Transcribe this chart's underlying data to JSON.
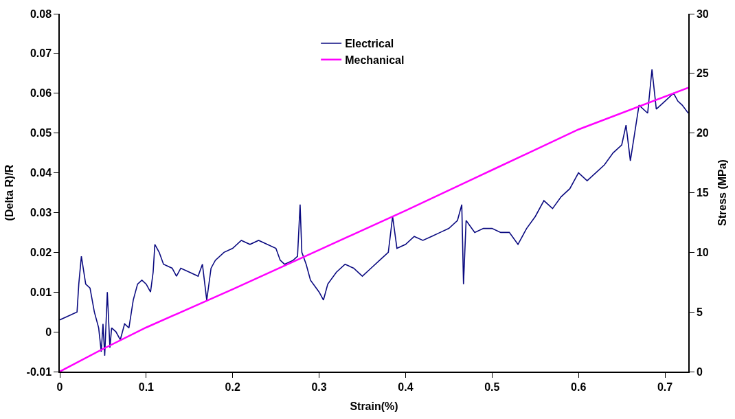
{
  "chart_data": {
    "type": "line",
    "xlabel": "Strain(%)",
    "ylabel": "(Delta R)/R",
    "y2label": "Stress (MPa)",
    "xlim": [
      0,
      0.727
    ],
    "xticks": [
      0,
      0.1,
      0.2,
      0.3,
      0.4,
      0.5,
      0.6,
      0.7
    ],
    "ylim": [
      -0.01,
      0.08
    ],
    "yticks": [
      -0.01,
      0,
      0.01,
      0.02,
      0.03,
      0.04,
      0.05,
      0.06,
      0.07,
      0.08
    ],
    "y2lim": [
      0,
      30
    ],
    "y2ticks": [
      0,
      5,
      10,
      15,
      20,
      25,
      30
    ],
    "legend": "top",
    "marker": "none",
    "line_style": "solid",
    "series": [
      {
        "name": "Electrical",
        "color": "#0a0a80",
        "x": [
          0,
          0.01,
          0.02,
          0.022,
          0.025,
          0.03,
          0.035,
          0.04,
          0.045,
          0.048,
          0.05,
          0.052,
          0.055,
          0.058,
          0.06,
          0.065,
          0.07,
          0.075,
          0.08,
          0.085,
          0.09,
          0.095,
          0.1,
          0.105,
          0.108,
          0.11,
          0.115,
          0.12,
          0.13,
          0.135,
          0.14,
          0.15,
          0.16,
          0.165,
          0.17,
          0.175,
          0.18,
          0.19,
          0.2,
          0.21,
          0.22,
          0.23,
          0.24,
          0.25,
          0.255,
          0.26,
          0.27,
          0.275,
          0.278,
          0.28,
          0.285,
          0.29,
          0.3,
          0.305,
          0.31,
          0.32,
          0.33,
          0.34,
          0.35,
          0.36,
          0.37,
          0.38,
          0.385,
          0.39,
          0.4,
          0.41,
          0.42,
          0.43,
          0.44,
          0.45,
          0.46,
          0.465,
          0.467,
          0.47,
          0.48,
          0.49,
          0.5,
          0.51,
          0.52,
          0.53,
          0.54,
          0.55,
          0.56,
          0.57,
          0.58,
          0.59,
          0.6,
          0.61,
          0.62,
          0.63,
          0.64,
          0.65,
          0.655,
          0.66,
          0.665,
          0.67,
          0.68,
          0.685,
          0.69,
          0.7,
          0.71,
          0.715,
          0.72,
          0.727
        ],
        "values": [
          0.003,
          0.004,
          0.005,
          0.012,
          0.019,
          0.012,
          0.011,
          0.005,
          0.001,
          -0.005,
          0.002,
          -0.006,
          0.01,
          -0.004,
          0.001,
          0.0,
          -0.002,
          0.002,
          0.001,
          0.008,
          0.012,
          0.013,
          0.012,
          0.01,
          0.015,
          0.022,
          0.02,
          0.017,
          0.016,
          0.014,
          0.016,
          0.015,
          0.014,
          0.017,
          0.008,
          0.016,
          0.018,
          0.02,
          0.021,
          0.023,
          0.022,
          0.023,
          0.022,
          0.021,
          0.018,
          0.017,
          0.018,
          0.019,
          0.032,
          0.02,
          0.017,
          0.013,
          0.01,
          0.008,
          0.012,
          0.015,
          0.017,
          0.016,
          0.014,
          0.016,
          0.018,
          0.02,
          0.029,
          0.021,
          0.022,
          0.024,
          0.023,
          0.024,
          0.025,
          0.026,
          0.028,
          0.032,
          0.012,
          0.028,
          0.025,
          0.026,
          0.026,
          0.025,
          0.025,
          0.022,
          0.026,
          0.029,
          0.033,
          0.031,
          0.034,
          0.036,
          0.04,
          0.038,
          0.04,
          0.042,
          0.045,
          0.047,
          0.052,
          0.043,
          0.05,
          0.057,
          0.055,
          0.066,
          0.056,
          0.058,
          0.06,
          0.058,
          0.057,
          0.055
        ]
      },
      {
        "name": "Mechanical",
        "color": "#ff00ff",
        "axis": "y2",
        "x": [
          0,
          0.05,
          0.1,
          0.2,
          0.3,
          0.4,
          0.5,
          0.6,
          0.727
        ],
        "values": [
          0,
          1.9,
          3.7,
          6.9,
          10.2,
          13.5,
          16.9,
          20.3,
          23.8
        ]
      }
    ]
  }
}
